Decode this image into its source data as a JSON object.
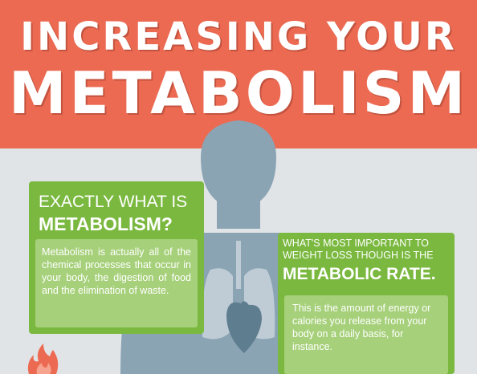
{
  "header": {
    "title_line1": "INCREASING YOUR",
    "title_line2": "METABOLISM",
    "background_color": "#ec6a52"
  },
  "card_left": {
    "heading_line1": "EXACTLY WHAT IS",
    "heading_line2": "METABOLISM?",
    "body": "Metabolism is actually all of the chemical processes that occur in your body, the digestion of food and the elimination of waste."
  },
  "card_right": {
    "heading_line1": "WHAT'S MOST IMPORTANT TO WEIGHT LOSS THOUGH IS THE",
    "heading_line2": "METABOLIC RATE.",
    "body": "This is the amount of energy or calories you release from your body on a daily basis, for instance."
  },
  "colors": {
    "card_green": "#7ab83f",
    "card_inner_green": "#a6d07a",
    "silhouette": "#8aa4b4",
    "background": "#e1e4e6"
  },
  "icons": {
    "human": "human-silhouette-icon",
    "lungs": "lungs-icon",
    "heart": "heart-icon",
    "flame": "flame-icon"
  }
}
